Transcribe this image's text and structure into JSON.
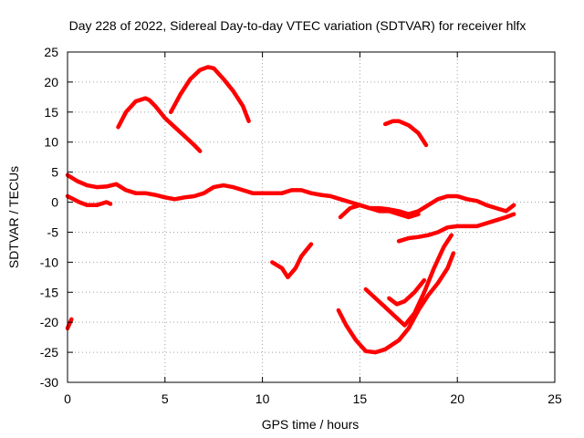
{
  "chart_data": {
    "type": "scatter",
    "title": "Day 228 of 2022, Sidereal Day-to-day VTEC variation (SDTVAR) for receiver hlfx",
    "xlabel": "GPS time / hours",
    "ylabel": "SDTVAR / TECUs",
    "xlim": [
      0,
      25
    ],
    "ylim": [
      -30,
      25
    ],
    "xticks": [
      0,
      5,
      10,
      15,
      20,
      25
    ],
    "yticks": [
      -30,
      -25,
      -20,
      -15,
      -10,
      -5,
      0,
      5,
      10,
      15,
      20,
      25
    ],
    "grid": true,
    "series_color": "#ff0000",
    "series": [
      {
        "name": "track-1",
        "x": [
          0.0,
          0.5,
          1.0,
          1.5,
          2.0,
          2.5,
          3.0,
          3.5,
          4.0,
          4.5,
          5.0,
          5.5,
          6.0,
          6.5,
          7.0,
          7.5,
          8.0,
          8.5,
          9.0,
          9.5,
          10.0,
          10.5,
          11.0,
          11.5,
          12.0,
          12.5,
          13.0,
          13.5,
          14.0,
          14.5,
          15.0,
          15.5,
          16.0,
          16.5,
          17.0,
          17.5,
          18.0,
          18.5,
          19.0,
          19.5,
          20.0,
          20.5,
          21.0,
          21.5,
          22.0,
          22.5,
          22.9
        ],
        "y": [
          4.5,
          3.5,
          2.8,
          2.5,
          2.6,
          3.0,
          2.0,
          1.5,
          1.5,
          1.2,
          0.8,
          0.5,
          0.8,
          1.0,
          1.5,
          2.5,
          2.8,
          2.5,
          2.0,
          1.5,
          1.5,
          1.5,
          1.5,
          2.0,
          2.0,
          1.5,
          1.2,
          1.0,
          0.5,
          0.0,
          -0.5,
          -1.0,
          -1.0,
          -1.2,
          -1.5,
          -2.0,
          -1.5,
          -0.5,
          0.5,
          1.0,
          1.0,
          0.5,
          0.2,
          -0.5,
          -1.0,
          -1.5,
          -0.5
        ]
      },
      {
        "name": "track-2",
        "x": [
          0.0,
          0.3,
          0.6,
          1.0,
          1.5,
          2.0,
          2.2
        ],
        "y": [
          1.0,
          0.5,
          0.0,
          -0.5,
          -0.5,
          0.0,
          -0.3
        ]
      },
      {
        "name": "track-3",
        "x": [
          2.6,
          3.0,
          3.5,
          4.0,
          4.2,
          4.5,
          5.0,
          5.5,
          6.0,
          6.5,
          6.8
        ],
        "y": [
          12.5,
          15.0,
          16.8,
          17.3,
          17.0,
          16.0,
          14.0,
          12.5,
          11.0,
          9.5,
          8.5
        ]
      },
      {
        "name": "track-4",
        "x": [
          5.3,
          5.8,
          6.3,
          6.8,
          7.2,
          7.5,
          8.0,
          8.5,
          9.0,
          9.3
        ],
        "y": [
          15.0,
          18.0,
          20.5,
          22.0,
          22.5,
          22.3,
          20.5,
          18.5,
          16.0,
          13.5
        ]
      },
      {
        "name": "track-5",
        "x": [
          16.3,
          16.7,
          17.0,
          17.5,
          18.0,
          18.4
        ],
        "y": [
          13.0,
          13.5,
          13.5,
          12.8,
          11.5,
          9.5
        ]
      },
      {
        "name": "track-6",
        "x": [
          10.5,
          11.0,
          11.3,
          11.7,
          12.0,
          12.5
        ],
        "y": [
          -10.0,
          -11.0,
          -12.5,
          -11.0,
          -9.0,
          -7.0
        ]
      },
      {
        "name": "track-7",
        "x": [
          0.0,
          0.2
        ],
        "y": [
          -21.0,
          -19.5
        ]
      },
      {
        "name": "track-8",
        "x": [
          13.9,
          14.3,
          14.8,
          15.3,
          15.8,
          16.3,
          17.0,
          17.5,
          18.0,
          18.5,
          19.0,
          19.5,
          19.8
        ],
        "y": [
          -18.0,
          -20.5,
          -23.0,
          -24.8,
          -25.0,
          -24.5,
          -23.0,
          -21.0,
          -18.0,
          -15.5,
          -13.5,
          -11.0,
          -8.5
        ]
      },
      {
        "name": "track-9",
        "x": [
          15.3,
          15.8,
          16.3,
          16.8,
          17.3,
          17.8,
          18.3,
          18.8,
          19.3,
          19.7
        ],
        "y": [
          -14.5,
          -16.0,
          -17.5,
          -19.0,
          -20.5,
          -18.5,
          -15.0,
          -11.0,
          -7.5,
          -5.5
        ]
      },
      {
        "name": "track-10",
        "x": [
          16.5,
          16.9,
          17.3,
          17.8,
          18.3
        ],
        "y": [
          -16.0,
          -17.0,
          -16.5,
          -15.0,
          -13.0
        ]
      },
      {
        "name": "track-11",
        "x": [
          17.0,
          17.5,
          18.0,
          18.5,
          19.0,
          19.5,
          20.0,
          20.5,
          21.0,
          21.5,
          22.0,
          22.5,
          22.9
        ],
        "y": [
          -6.5,
          -6.0,
          -5.8,
          -5.5,
          -5.0,
          -4.2,
          -4.0,
          -4.0,
          -4.0,
          -3.5,
          -3.0,
          -2.5,
          -2.0
        ]
      },
      {
        "name": "track-12",
        "x": [
          14.0,
          14.5,
          15.0,
          15.5,
          16.0,
          16.5,
          17.0,
          17.5,
          18.0
        ],
        "y": [
          -2.5,
          -1.0,
          -0.5,
          -1.0,
          -1.5,
          -1.5,
          -2.0,
          -2.5,
          -2.0
        ]
      }
    ]
  }
}
